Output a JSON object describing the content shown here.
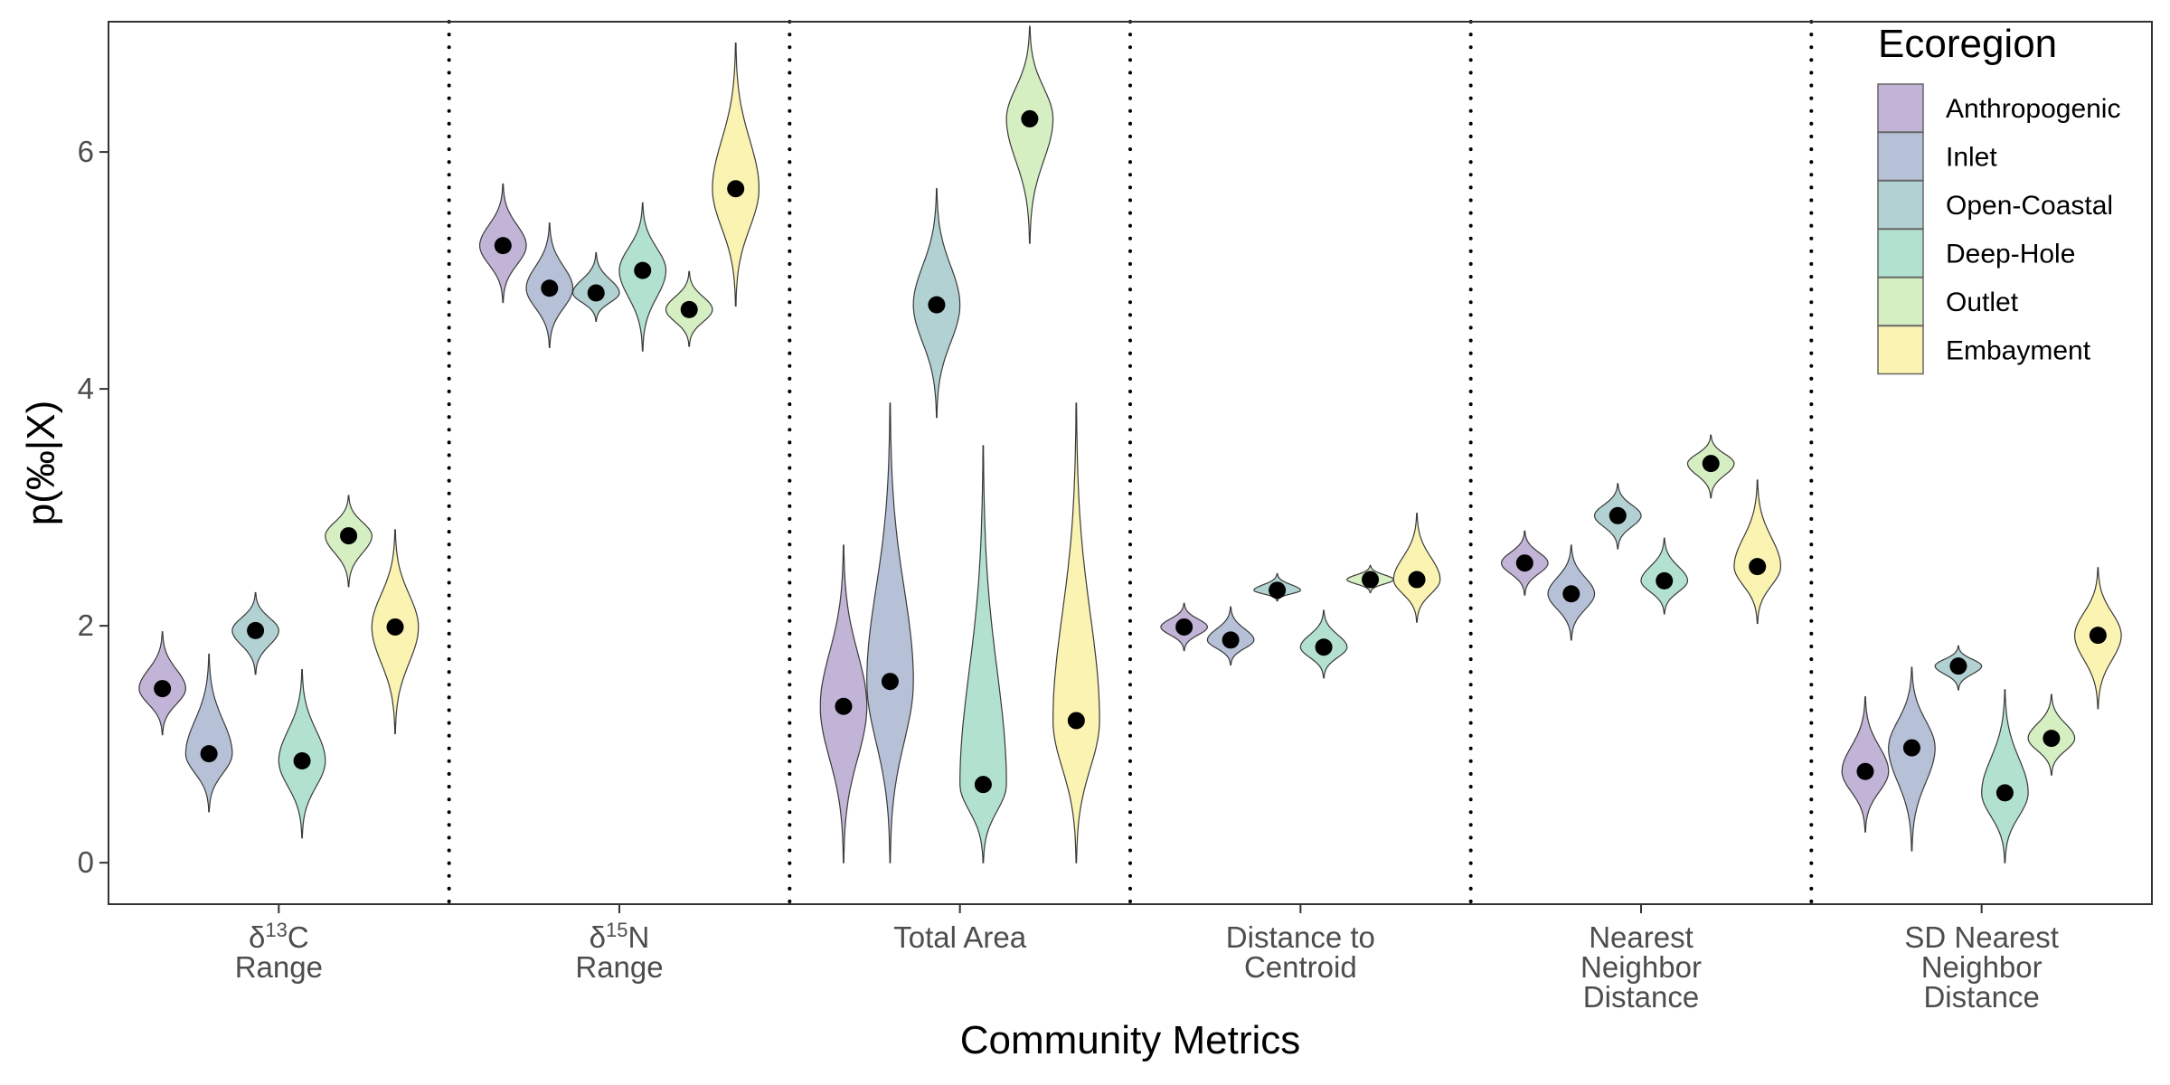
{
  "chart_data": {
    "type": "violin",
    "xlabel": "Community Metrics",
    "ylabel": "p(‰|X)",
    "ylim": [
      -0.35,
      7.1
    ],
    "yticks": [
      0,
      2,
      4,
      6
    ],
    "grid": false,
    "legend": {
      "title": "Ecoregion",
      "placement": "top-right inside"
    },
    "categories": [
      {
        "lines": [
          {
            "text": "δ",
            "sup": "13",
            "after": "C"
          },
          {
            "text": "Range"
          }
        ]
      },
      {
        "lines": [
          {
            "text": "δ",
            "sup": "15",
            "after": "N"
          },
          {
            "text": "Range"
          }
        ]
      },
      {
        "lines": [
          {
            "text": "Total Area"
          }
        ]
      },
      {
        "lines": [
          {
            "text": "Distance to"
          },
          {
            "text": "Centroid"
          }
        ]
      },
      {
        "lines": [
          {
            "text": "Nearest"
          },
          {
            "text": "Neighbor"
          },
          {
            "text": "Distance"
          }
        ]
      },
      {
        "lines": [
          {
            "text": "SD Nearest"
          },
          {
            "text": "Neighbor"
          },
          {
            "text": "Distance"
          }
        ]
      }
    ],
    "series": [
      {
        "name": "Anthropogenic",
        "color": "#c2b4d6",
        "mode": [
          1.47,
          5.21,
          1.32,
          1.99,
          2.53,
          0.77
        ],
        "range": [
          [
            1.08,
            1.95
          ],
          [
            4.73,
            5.73
          ],
          [
            0.0,
            2.68
          ],
          [
            1.79,
            2.19
          ],
          [
            2.26,
            2.8
          ],
          [
            0.26,
            1.4
          ]
        ]
      },
      {
        "name": "Inlet",
        "color": "#b6c0d7",
        "mode": [
          0.92,
          4.85,
          1.53,
          1.88,
          2.27,
          0.97
        ],
        "range": [
          [
            0.43,
            1.76
          ],
          [
            4.35,
            5.4
          ],
          [
            0.0,
            3.88
          ],
          [
            1.67,
            2.16
          ],
          [
            1.88,
            2.68
          ],
          [
            0.1,
            1.65
          ]
        ]
      },
      {
        "name": "Open-Coastal",
        "color": "#b1d1d3",
        "mode": [
          1.96,
          4.81,
          4.71,
          2.3,
          2.93,
          1.66
        ],
        "range": [
          [
            1.59,
            2.28
          ],
          [
            4.57,
            5.15
          ],
          [
            3.76,
            5.69
          ],
          [
            2.21,
            2.44
          ],
          [
            2.65,
            3.2
          ],
          [
            1.46,
            1.83
          ]
        ]
      },
      {
        "name": "Deep-Hole",
        "color": "#b2e1d0",
        "mode": [
          0.86,
          5.0,
          0.66,
          1.82,
          2.38,
          0.59
        ],
        "range": [
          [
            0.21,
            1.63
          ],
          [
            4.32,
            5.57
          ],
          [
            0.0,
            3.52
          ],
          [
            1.56,
            2.13
          ],
          [
            2.1,
            2.74
          ],
          [
            0.0,
            1.46
          ]
        ]
      },
      {
        "name": "Outlet",
        "color": "#d5eec2",
        "mode": [
          2.76,
          4.67,
          6.28,
          2.39,
          3.37,
          1.05
        ],
        "range": [
          [
            2.33,
            3.1
          ],
          [
            4.36,
            4.99
          ],
          [
            5.23,
            7.06
          ],
          [
            2.28,
            2.51
          ],
          [
            3.08,
            3.61
          ],
          [
            0.74,
            1.42
          ]
        ]
      },
      {
        "name": "Embayment",
        "color": "#fbf3b1",
        "mode": [
          1.99,
          5.69,
          1.2,
          2.39,
          2.5,
          1.92
        ],
        "range": [
          [
            1.09,
            2.81
          ],
          [
            4.7,
            6.92
          ],
          [
            0.0,
            3.88
          ],
          [
            2.03,
            2.95
          ],
          [
            2.02,
            3.23
          ],
          [
            1.3,
            2.49
          ]
        ]
      }
    ]
  }
}
